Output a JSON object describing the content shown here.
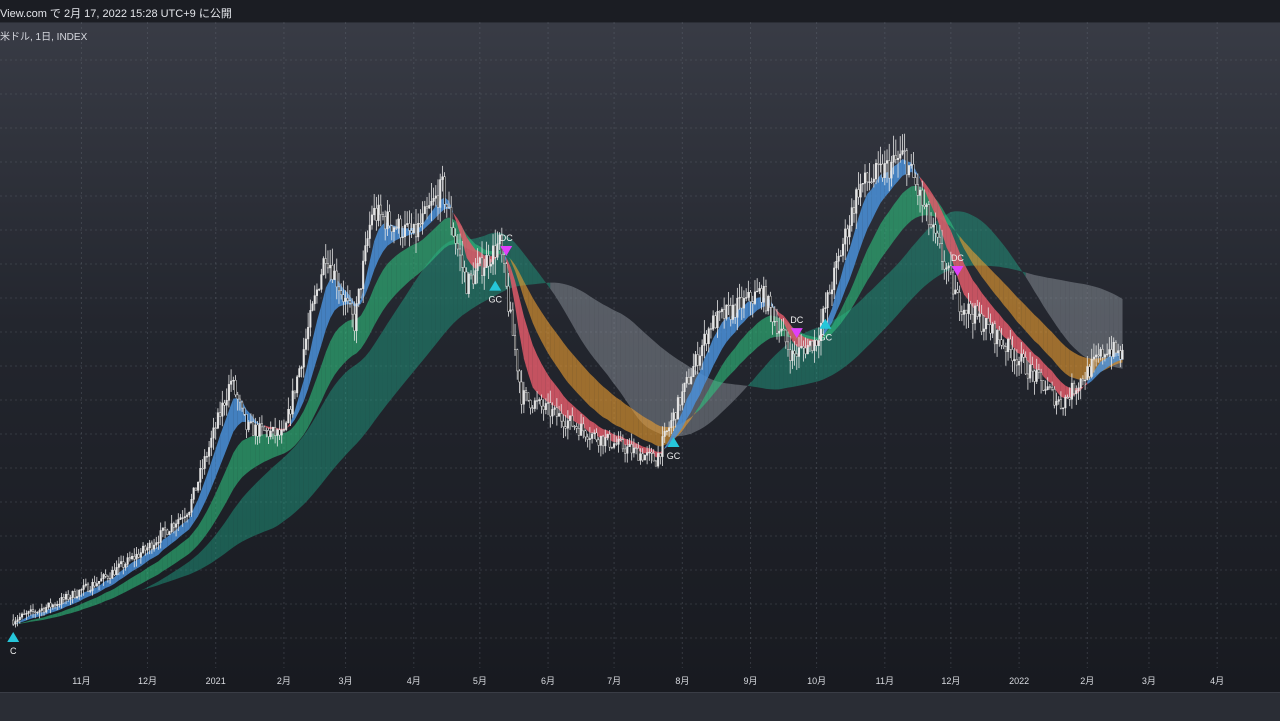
{
  "header": {
    "published": "View.com で 2月 17, 2022 15:28 UTC+9 に公開",
    "symbol": "米ドル, 1日, INDEX"
  },
  "chart_data": {
    "type": "candlestick",
    "title": "",
    "xlabel": "",
    "ylabel": "",
    "grid": true,
    "x_ticks": [
      "11月",
      "12月",
      "2021",
      "2月",
      "3月",
      "4月",
      "5月",
      "6月",
      "7月",
      "8月",
      "9月",
      "10月",
      "11月",
      "12月",
      "2022",
      "2月",
      "3月",
      "4月"
    ],
    "price_path": [
      {
        "date": "2020-10-01",
        "close": 10
      },
      {
        "date": "2020-10-20",
        "close": 12
      },
      {
        "date": "2020-11-10",
        "close": 15
      },
      {
        "date": "2020-12-01",
        "close": 19
      },
      {
        "date": "2020-12-20",
        "close": 24
      },
      {
        "date": "2021-01-08",
        "close": 40
      },
      {
        "date": "2021-01-15",
        "close": 34
      },
      {
        "date": "2021-02-01",
        "close": 33
      },
      {
        "date": "2021-02-20",
        "close": 56
      },
      {
        "date": "2021-03-05",
        "close": 47
      },
      {
        "date": "2021-03-13",
        "close": 61
      },
      {
        "date": "2021-04-01",
        "close": 58
      },
      {
        "date": "2021-04-14",
        "close": 64
      },
      {
        "date": "2021-04-25",
        "close": 52
      },
      {
        "date": "2021-05-10",
        "close": 57
      },
      {
        "date": "2021-05-20",
        "close": 38
      },
      {
        "date": "2021-06-22",
        "close": 33
      },
      {
        "date": "2021-07-20",
        "close": 30
      },
      {
        "date": "2021-08-14",
        "close": 47
      },
      {
        "date": "2021-09-06",
        "close": 51
      },
      {
        "date": "2021-09-20",
        "close": 43
      },
      {
        "date": "2021-10-01",
        "close": 45
      },
      {
        "date": "2021-10-20",
        "close": 64
      },
      {
        "date": "2021-11-10",
        "close": 68
      },
      {
        "date": "2021-12-04",
        "close": 50
      },
      {
        "date": "2021-12-20",
        "close": 46
      },
      {
        "date": "2022-01-20",
        "close": 37
      },
      {
        "date": "2022-02-10",
        "close": 44
      },
      {
        "date": "2022-02-17",
        "close": 43
      }
    ],
    "series": [
      {
        "name": "",
        "role": "fast ribbon",
        "colors": {
          "up": "#4a90d9",
          "down": "#e05a6a"
        }
      },
      {
        "name": "",
        "role": "medium ribbon",
        "colors": {
          "up": "#2ec27e",
          "down": "#f0a030"
        }
      },
      {
        "name": "",
        "role": "slow ribbon",
        "colors": {
          "up": "#1fa88a",
          "down": "#9aa0a8"
        }
      }
    ],
    "signals": [
      {
        "label": "C",
        "type": "golden",
        "date": "2020-10-01"
      },
      {
        "label": "GC",
        "type": "golden",
        "date": "2021-05-08"
      },
      {
        "label": "DC",
        "type": "dead",
        "date": "2021-05-13"
      },
      {
        "label": "GC",
        "type": "golden",
        "date": "2021-07-28"
      },
      {
        "label": "DC",
        "type": "dead",
        "date": "2021-09-22"
      },
      {
        "label": "GC",
        "type": "golden",
        "date": "2021-10-05"
      },
      {
        "label": "DC",
        "type": "dead",
        "date": "2021-12-04"
      }
    ],
    "colors": {
      "golden": "#26c6da",
      "dead": "#e040fb",
      "candle": "#e6e6e6",
      "candle_body_down": "#111111"
    }
  }
}
